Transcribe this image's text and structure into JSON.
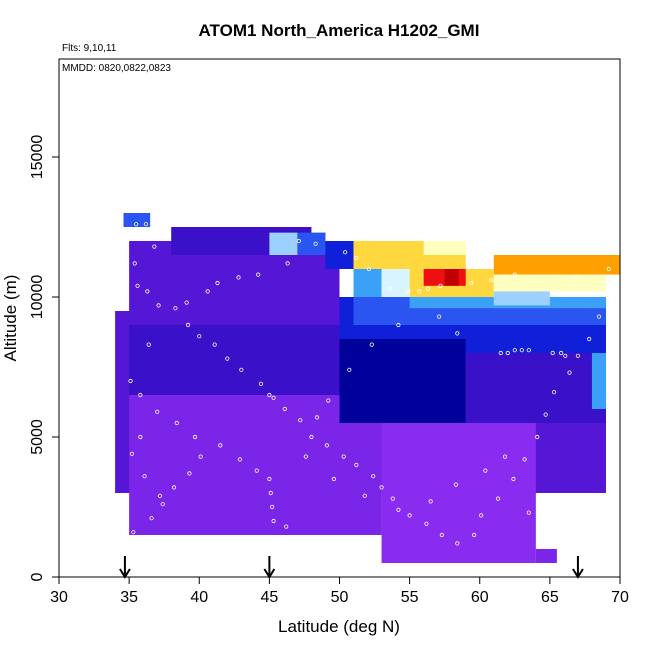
{
  "chart_data": {
    "type": "heatmap",
    "title": "ATOM1 North_America H1202_GMI",
    "annotations": [
      "Flts: 9,10,11",
      "MMDD: 0820,0822,0823"
    ],
    "xlabel": "Latitude (deg N)",
    "ylabel": "Altitude (m)",
    "xlim": [
      30,
      70
    ],
    "ylim": [
      0,
      18500
    ],
    "xticks": [
      30,
      35,
      40,
      45,
      50,
      55,
      60,
      65,
      70
    ],
    "xtick_labels": [
      "30",
      "35",
      "40",
      "45",
      "50",
      "55",
      "60",
      "65",
      "70"
    ],
    "yticks": [
      0,
      5000,
      10000,
      15000
    ],
    "ytick_labels": [
      "0",
      "5000",
      "10000",
      "15000"
    ],
    "arrows_lat": [
      34.7,
      45,
      67
    ],
    "colors": {
      "lowest": "#8a2bf0",
      "low": "#7a25e8",
      "mid": "#5516d6",
      "upper": "#3a10c8",
      "navy": "#00009a",
      "blue": "#1020d8",
      "royal": "#2a55f0",
      "sky": "#3aa0f8",
      "light": "#9cd0ff",
      "pale": "#d8f4ff",
      "cream": "#ffffc0",
      "yellow": "#ffd840",
      "orange": "#ffa000",
      "red": "#ee1010",
      "darkred": "#c00000"
    },
    "cells": [
      {
        "lat0": 34,
        "lat1": 69,
        "alt0": 3000,
        "alt1": 9500,
        "c": "mid"
      },
      {
        "lat0": 35,
        "lat1": 53,
        "alt0": 1500,
        "alt1": 6500,
        "c": "low"
      },
      {
        "lat0": 53,
        "lat1": 64,
        "alt0": 1000,
        "alt1": 5500,
        "c": "lowest"
      },
      {
        "lat0": 35,
        "lat1": 50,
        "alt0": 6500,
        "alt1": 9000,
        "c": "upper"
      },
      {
        "lat0": 35,
        "lat1": 50,
        "alt0": 9000,
        "alt1": 12000,
        "c": "mid"
      },
      {
        "lat0": 50,
        "lat1": 59,
        "alt0": 5500,
        "alt1": 8500,
        "c": "navy"
      },
      {
        "lat0": 59,
        "lat1": 69,
        "alt0": 5500,
        "alt1": 8000,
        "c": "upper"
      },
      {
        "lat0": 50,
        "lat1": 59,
        "alt0": 8500,
        "alt1": 10000,
        "c": "blue"
      },
      {
        "lat0": 59,
        "lat1": 69,
        "alt0": 8000,
        "alt1": 9000,
        "c": "blue"
      },
      {
        "lat0": 38,
        "lat1": 48,
        "alt0": 11500,
        "alt1": 12500,
        "c": "upper"
      },
      {
        "lat0": 34.6,
        "lat1": 36.5,
        "alt0": 12500,
        "alt1": 13000,
        "c": "royal"
      },
      {
        "lat0": 45,
        "lat1": 47,
        "alt0": 11500,
        "alt1": 12300,
        "c": "light"
      },
      {
        "lat0": 47,
        "lat1": 49,
        "alt0": 11500,
        "alt1": 12300,
        "c": "royal"
      },
      {
        "lat0": 49,
        "lat1": 51,
        "alt0": 11000,
        "alt1": 12000,
        "c": "blue"
      },
      {
        "lat0": 51,
        "lat1": 53,
        "alt0": 10000,
        "alt1": 11000,
        "c": "sky"
      },
      {
        "lat0": 51,
        "lat1": 59,
        "alt0": 11000,
        "alt1": 12000,
        "c": "yellow"
      },
      {
        "lat0": 56,
        "lat1": 59,
        "alt0": 11500,
        "alt1": 12000,
        "c": "cream"
      },
      {
        "lat0": 53,
        "lat1": 55,
        "alt0": 10000,
        "alt1": 11000,
        "c": "pale"
      },
      {
        "lat0": 55,
        "lat1": 61,
        "alt0": 10000,
        "alt1": 11000,
        "c": "yellow"
      },
      {
        "lat0": 56,
        "lat1": 59,
        "alt0": 10400,
        "alt1": 11000,
        "c": "red"
      },
      {
        "lat0": 57.5,
        "lat1": 58.5,
        "alt0": 10400,
        "alt1": 11000,
        "c": "darkred"
      },
      {
        "lat0": 61,
        "lat1": 70,
        "alt0": 10800,
        "alt1": 11500,
        "c": "orange"
      },
      {
        "lat0": 61,
        "lat1": 69,
        "alt0": 10200,
        "alt1": 10800,
        "c": "cream"
      },
      {
        "lat0": 51,
        "lat1": 69,
        "alt0": 9000,
        "alt1": 10000,
        "c": "royal"
      },
      {
        "lat0": 55,
        "lat1": 69,
        "alt0": 9600,
        "alt1": 10000,
        "c": "sky"
      },
      {
        "lat0": 61,
        "lat1": 65,
        "alt0": 9700,
        "alt1": 10200,
        "c": "light"
      },
      {
        "lat0": 68,
        "lat1": 69,
        "alt0": 6000,
        "alt1": 8000,
        "c": "sky"
      },
      {
        "lat0": 53,
        "lat1": 64,
        "alt0": 500,
        "alt1": 1000,
        "c": "lowest"
      },
      {
        "lat0": 64,
        "lat1": 65.5,
        "alt0": 500,
        "alt1": 1000,
        "c": "low"
      }
    ],
    "observations": [
      [
        35.5,
        12600
      ],
      [
        36.2,
        12600
      ],
      [
        36.8,
        11800
      ],
      [
        35.4,
        11200
      ],
      [
        35.6,
        10400
      ],
      [
        36.3,
        10200
      ],
      [
        37.1,
        9700
      ],
      [
        38.3,
        9600
      ],
      [
        39.2,
        9000
      ],
      [
        40.0,
        8600
      ],
      [
        41.1,
        8300
      ],
      [
        42.0,
        7800
      ],
      [
        43.0,
        7400
      ],
      [
        44.4,
        6900
      ],
      [
        45.0,
        6500
      ],
      [
        45.3,
        6400
      ],
      [
        46.1,
        6000
      ],
      [
        47.2,
        5600
      ],
      [
        48.0,
        5000
      ],
      [
        49.1,
        4700
      ],
      [
        50.3,
        4300
      ],
      [
        51.2,
        4000
      ],
      [
        52.4,
        3600
      ],
      [
        53.0,
        3200
      ],
      [
        53.8,
        2800
      ],
      [
        55.0,
        2200
      ],
      [
        56.2,
        1900
      ],
      [
        57.3,
        1500
      ],
      [
        58.4,
        1200
      ],
      [
        59.6,
        1500
      ],
      [
        60.1,
        2200
      ],
      [
        61.3,
        2800
      ],
      [
        62.4,
        3500
      ],
      [
        63.2,
        4200
      ],
      [
        64.1,
        5000
      ],
      [
        64.7,
        5800
      ],
      [
        65.3,
        6600
      ],
      [
        66.4,
        7300
      ],
      [
        67.0,
        7900
      ],
      [
        67.8,
        8500
      ],
      [
        68.5,
        9300
      ],
      [
        68.7,
        10500
      ],
      [
        69.2,
        11000
      ],
      [
        66.8,
        10700
      ],
      [
        62.5,
        10800
      ],
      [
        61.7,
        10700
      ],
      [
        60.8,
        10600
      ],
      [
        59.4,
        10500
      ],
      [
        57.2,
        10400
      ],
      [
        56.3,
        10300
      ],
      [
        55.7,
        10200
      ],
      [
        54.9,
        10200
      ],
      [
        53.6,
        10300
      ],
      [
        52.1,
        11000
      ],
      [
        51.2,
        11400
      ],
      [
        50.4,
        11600
      ],
      [
        48.3,
        11900
      ],
      [
        47.1,
        12000
      ],
      [
        46.3,
        11200
      ],
      [
        44.2,
        10800
      ],
      [
        42.8,
        10700
      ],
      [
        41.3,
        10500
      ],
      [
        40.6,
        10200
      ],
      [
        39.1,
        9800
      ],
      [
        36.4,
        8300
      ],
      [
        35.1,
        7000
      ],
      [
        35.8,
        6500
      ],
      [
        37.0,
        5900
      ],
      [
        38.4,
        5500
      ],
      [
        39.7,
        5000
      ],
      [
        41.5,
        4700
      ],
      [
        42.9,
        4200
      ],
      [
        44.1,
        3800
      ],
      [
        45.0,
        3500
      ],
      [
        45.1,
        3000
      ],
      [
        45.2,
        2500
      ],
      [
        45.3,
        2000
      ],
      [
        46.2,
        1800
      ],
      [
        35.3,
        1600
      ],
      [
        36.6,
        2100
      ],
      [
        37.4,
        2600
      ],
      [
        38.2,
        3200
      ],
      [
        39.3,
        3700
      ],
      [
        40.1,
        4300
      ],
      [
        35.8,
        5000
      ],
      [
        35.2,
        4400
      ],
      [
        36.1,
        3600
      ],
      [
        37.2,
        2900
      ],
      [
        63.5,
        8100
      ],
      [
        63.0,
        8100
      ],
      [
        62.5,
        8100
      ],
      [
        62.0,
        8000
      ],
      [
        61.5,
        8000
      ],
      [
        65.2,
        8000
      ],
      [
        65.8,
        8000
      ],
      [
        66.1,
        7900
      ],
      [
        57.1,
        9300
      ],
      [
        58.4,
        8700
      ],
      [
        54.2,
        9000
      ],
      [
        52.3,
        8300
      ],
      [
        50.7,
        7400
      ],
      [
        49.2,
        6300
      ],
      [
        48.4,
        5700
      ],
      [
        47.6,
        4300
      ],
      [
        49.6,
        3500
      ],
      [
        51.8,
        2900
      ],
      [
        54.2,
        2400
      ],
      [
        56.5,
        2700
      ],
      [
        58.3,
        3300
      ],
      [
        60.4,
        3800
      ],
      [
        61.8,
        4300
      ],
      [
        63.5,
        2300
      ],
      [
        65.1,
        1500
      ],
      [
        66.0,
        2000
      ],
      [
        67.0,
        2800
      ]
    ]
  }
}
